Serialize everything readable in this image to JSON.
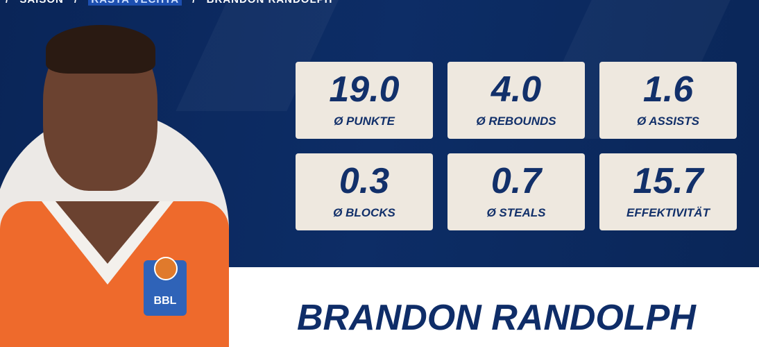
{
  "breadcrumb": [
    "/",
    "SAISON",
    "/",
    "RASTA VECHTA",
    "/",
    "BRANDON RANDOLPH"
  ],
  "jersey_badge": "BBL",
  "stats": [
    {
      "value": "19.0",
      "label": "Ø PUNKTE"
    },
    {
      "value": "4.0",
      "label": "Ø REBOUNDS"
    },
    {
      "value": "1.6",
      "label": "Ø ASSISTS"
    },
    {
      "value": "0.3",
      "label": "Ø BLOCKS"
    },
    {
      "value": "0.7",
      "label": "Ø STEALS"
    },
    {
      "value": "15.7",
      "label": "EFFEKTIVITÄT"
    }
  ],
  "player_name": "BRANDON RANDOLPH",
  "colors": {
    "navy": "#0d2d66",
    "card": "#eee8df",
    "text": "#12306a",
    "jersey": "#ee6a2c"
  }
}
